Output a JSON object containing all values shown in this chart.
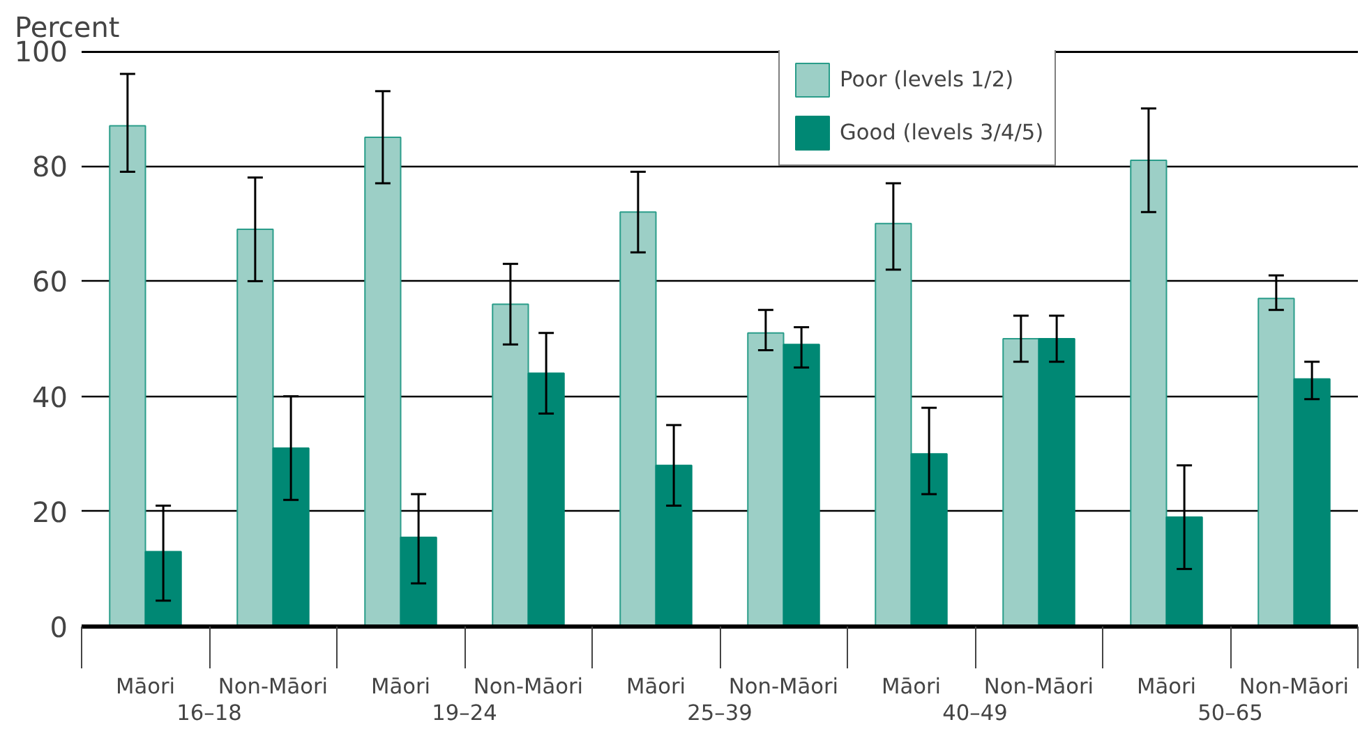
{
  "chart_data": {
    "type": "bar",
    "ylabel": "Percent",
    "categories": [
      "Māori",
      "Non-Māori",
      "Māori",
      "Non-Māori",
      "Māori",
      "Non-Māori",
      "Māori",
      "Non-Māori",
      "Māori",
      "Non-Māori"
    ],
    "annotations": [
      "16–18",
      "19–24",
      "25–39",
      "40–49",
      "50–65"
    ],
    "series": [
      {
        "name": "Poor (levels 1/2)",
        "color": "#9ccfc6",
        "values": [
          87,
          69,
          85,
          56,
          72,
          51,
          70,
          50,
          81,
          57
        ],
        "errors": [
          [
            79,
            96
          ],
          [
            60,
            78
          ],
          [
            77,
            93
          ],
          [
            49,
            63
          ],
          [
            65,
            79
          ],
          [
            48,
            55
          ],
          [
            62,
            77
          ],
          [
            46,
            54
          ],
          [
            72,
            90
          ],
          [
            55,
            61
          ]
        ]
      },
      {
        "name": "Good (levels 3/4/5)",
        "color": "#008874",
        "values": [
          13,
          31,
          15.5,
          44,
          28,
          49,
          30,
          50,
          19,
          43
        ],
        "errors": [
          [
            4.5,
            21
          ],
          [
            22,
            40
          ],
          [
            7.5,
            23
          ],
          [
            37,
            51
          ],
          [
            21,
            35
          ],
          [
            45,
            52
          ],
          [
            23,
            38
          ],
          [
            46,
            54
          ],
          [
            10,
            28
          ],
          [
            39.5,
            46
          ]
        ]
      }
    ],
    "ylim": [
      0,
      100
    ],
    "yticks": [
      0,
      20,
      40,
      60,
      80,
      100
    ],
    "grid": "y",
    "legend": "top"
  }
}
